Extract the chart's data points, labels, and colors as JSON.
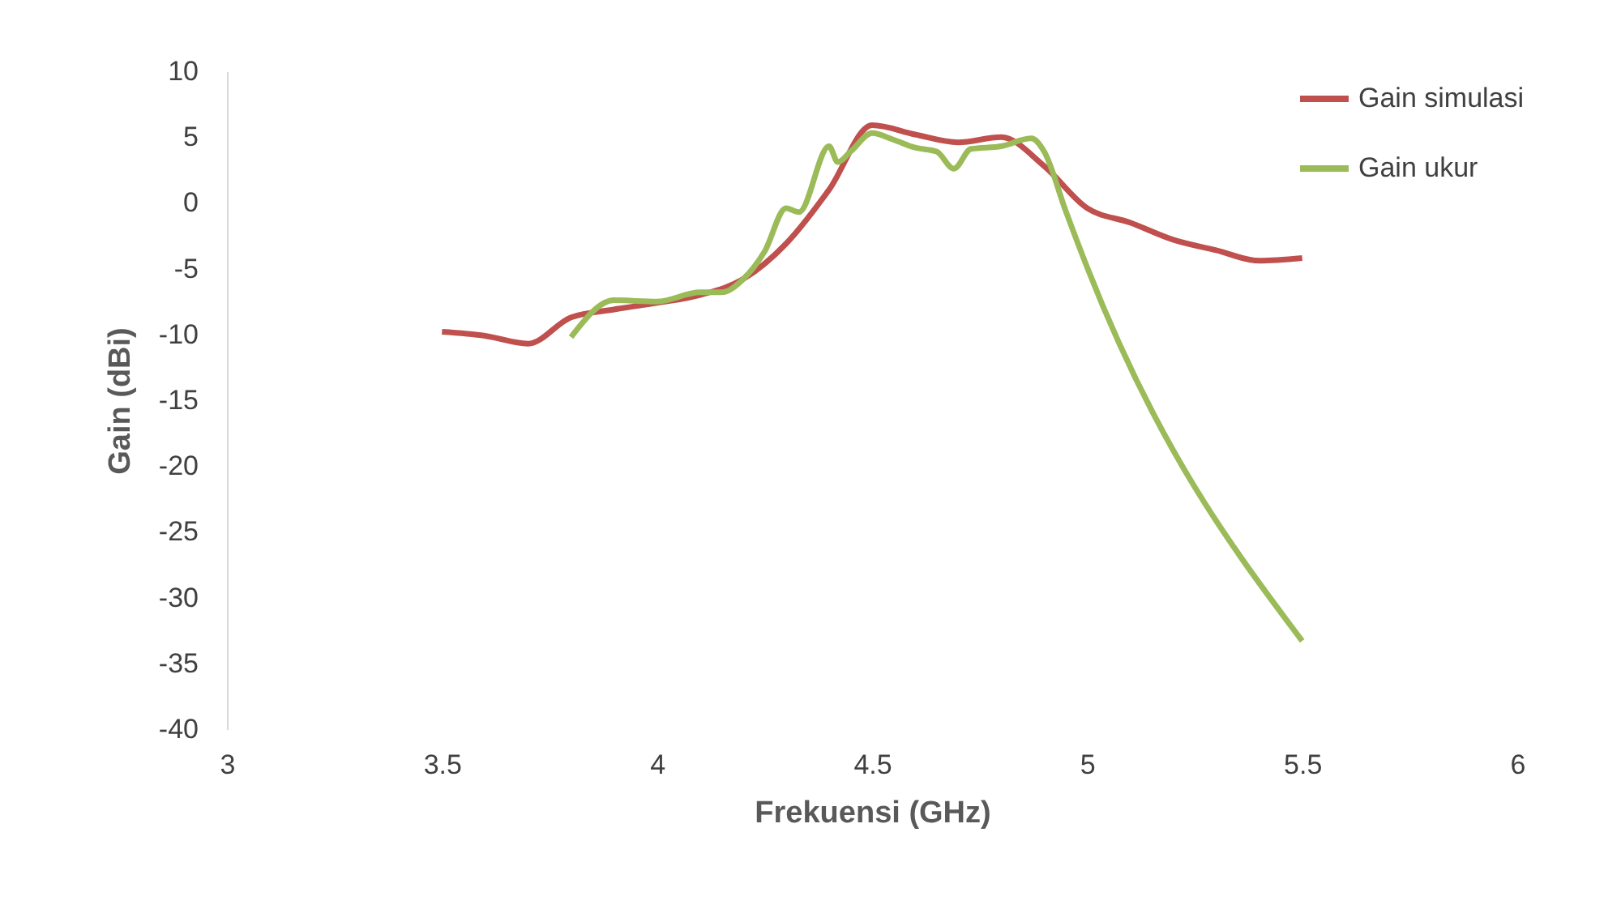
{
  "chart_data": {
    "type": "line",
    "xlabel": "Frekuensi (GHz)",
    "ylabel": "Gain (dBi)",
    "xlim": [
      3,
      6
    ],
    "xticks": [
      3,
      3.5,
      4,
      4.5,
      5,
      5.5,
      6
    ],
    "ylim": [
      -40,
      10
    ],
    "yticks": [
      -40,
      -35,
      -30,
      -25,
      -20,
      -15,
      -10,
      -5,
      0,
      5,
      10
    ],
    "grid": false,
    "legend": "top right",
    "line_style": "solid",
    "marker": "none",
    "series": [
      {
        "name": "Gain simulasi",
        "color": "#c0504d",
        "x": [
          3.5,
          3.6,
          3.7,
          3.8,
          3.9,
          4.0,
          4.1,
          4.2,
          4.3,
          4.4,
          4.5,
          4.6,
          4.7,
          4.8,
          4.9,
          5.0,
          5.1,
          5.2,
          5.3,
          5.4,
          5.5
        ],
        "values": [
          -9.8,
          -10.1,
          -10.7,
          -8.7,
          -8.1,
          -7.6,
          -7.0,
          -5.8,
          -3.1,
          1.0,
          5.9,
          5.2,
          4.6,
          5.0,
          2.8,
          -0.4,
          -1.5,
          -2.8,
          -3.6,
          -4.4,
          -4.2
        ]
      },
      {
        "name": "Gain ukur",
        "color": "#9bbb59",
        "x": [
          3.8,
          3.9,
          4.0,
          4.1,
          4.15,
          4.2,
          4.25,
          4.3,
          4.33,
          4.4,
          4.42,
          4.45,
          4.5,
          4.55,
          4.6,
          4.65,
          4.69,
          4.73,
          4.8,
          4.87,
          4.9,
          4.95,
          5.0,
          5.5
        ],
        "values": [
          -10.2,
          -7.4,
          -7.5,
          -6.8,
          -6.8,
          -5.8,
          -3.7,
          -0.4,
          -0.7,
          4.3,
          3.1,
          3.9,
          5.3,
          4.8,
          4.2,
          3.9,
          2.6,
          4.1,
          4.3,
          4.9,
          3.9,
          -0.6,
          -4.9,
          -33.3
        ]
      }
    ]
  }
}
